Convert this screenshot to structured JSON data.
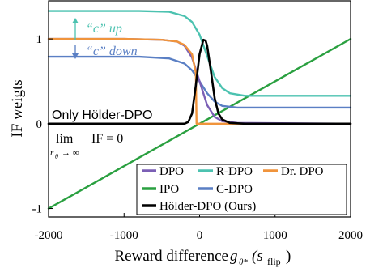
{
  "chart_data": {
    "type": "line",
    "xlabel_main": "Reward difference ",
    "xlabel_math": "g",
    "xlabel_sub": "θ*",
    "xlabel_arg": "(s",
    "xlabel_arg_sub": "flip",
    "xlabel_close": ")",
    "ylabel": "IF weigts",
    "xlim": [
      -2000,
      2000
    ],
    "ylim": [
      -1.1,
      1.45
    ],
    "x_ticks": [
      {
        "value": -2000,
        "label": "-2000"
      },
      {
        "value": -1000,
        "label": "-1000"
      },
      {
        "value": 0,
        "label": "0"
      },
      {
        "value": 1000,
        "label": "1000"
      },
      {
        "value": 2000,
        "label": "2000"
      }
    ],
    "y_ticks": [
      {
        "value": -1,
        "label": "-1"
      },
      {
        "value": 0,
        "label": "0"
      },
      {
        "value": 1,
        "label": "1"
      }
    ],
    "legend_position": "bottom-right",
    "series": [
      {
        "key": "dpo",
        "name": "DPO",
        "color": "#7b5fb5",
        "x": [
          -2000,
          -1000,
          -500,
          -300,
          -200,
          -100,
          0,
          100,
          200,
          300,
          500,
          2000
        ],
        "y": [
          1.0,
          1.0,
          0.99,
          0.97,
          0.92,
          0.78,
          0.5,
          0.22,
          0.08,
          0.03,
          0.01,
          0.0
        ]
      },
      {
        "key": "rdpo",
        "name": "R-DPO",
        "color": "#4cc2b0",
        "x": [
          -2000,
          -800,
          -400,
          -200,
          -100,
          0,
          100,
          200,
          300,
          400,
          600,
          2000
        ],
        "y": [
          1.33,
          1.33,
          1.32,
          1.27,
          1.2,
          1.05,
          0.8,
          0.55,
          0.42,
          0.36,
          0.33,
          0.33
        ]
      },
      {
        "key": "drdpo",
        "name": "Dr. DPO",
        "color": "#f0943c",
        "x": [
          -2000,
          -1000,
          -500,
          -300,
          -200,
          -100,
          -50,
          -40,
          2000
        ],
        "y": [
          1.0,
          1.0,
          0.99,
          0.97,
          0.93,
          0.82,
          0.6,
          0.0,
          0.0
        ]
      },
      {
        "key": "ipo",
        "name": "IPO",
        "color": "#2aa040",
        "x": [
          -2000,
          2000
        ],
        "y": [
          -1.0,
          1.0
        ]
      },
      {
        "key": "cdpo",
        "name": "C-DPO",
        "color": "#5a7fc4",
        "x": [
          -2000,
          -800,
          -400,
          -200,
          -100,
          0,
          100,
          200,
          300,
          500,
          2000
        ],
        "y": [
          0.79,
          0.79,
          0.77,
          0.71,
          0.63,
          0.5,
          0.36,
          0.26,
          0.21,
          0.19,
          0.19
        ]
      },
      {
        "key": "holder",
        "name": "Hölder-DPO (Ours)",
        "color": "#000000",
        "x": [
          -2000,
          -400,
          -200,
          -150,
          -100,
          -50,
          0,
          50,
          80,
          100,
          150,
          200,
          250,
          300,
          400,
          600,
          2000
        ],
        "y": [
          0.0,
          0.0,
          0.0,
          0.02,
          0.12,
          0.45,
          0.82,
          0.99,
          0.98,
          0.92,
          0.62,
          0.3,
          0.12,
          0.05,
          0.01,
          0.0,
          0.0
        ]
      }
    ],
    "annotations": {
      "c_up": "“c” up",
      "c_down": "“c” down",
      "only_holder": "Only Hölder-DPO",
      "lim": "lim",
      "lim_sub": "r",
      "lim_sub2": "θ",
      "lim_arrow": "→ ∞",
      "if_zero": "IF = 0"
    }
  }
}
